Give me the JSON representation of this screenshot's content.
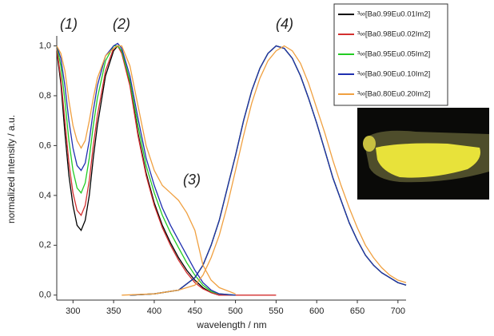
{
  "chart_data": {
    "type": "line",
    "xlabel": "wavelength / nm",
    "ylabel": "normalized intensity / a.u.",
    "annotations": [
      "(1)",
      "(2)",
      "(3)",
      "(4)"
    ],
    "xlim": [
      280,
      710
    ],
    "ylim": [
      -0.02,
      1.04
    ],
    "xticks": [
      300,
      350,
      400,
      450,
      500,
      550,
      600,
      650,
      700
    ],
    "yticks": [
      {
        "value": 0,
        "label": "0,0"
      },
      {
        "value": 0.2,
        "label": "0,2"
      },
      {
        "value": 0.4,
        "label": "0,4"
      },
      {
        "value": 0.6,
        "label": "0,6"
      },
      {
        "value": 0.8,
        "label": "0,8"
      },
      {
        "value": 1,
        "label": "1,0"
      }
    ],
    "series": [
      {
        "name": "³∞[Ba0.99Eu0.01Im2]",
        "color": "#000000",
        "x": [
          280,
          285,
          290,
          295,
          300,
          305,
          310,
          315,
          320,
          325,
          330,
          340,
          350,
          355,
          360,
          370,
          380,
          390,
          400,
          410,
          420,
          430,
          440,
          450,
          460,
          470,
          480,
          500,
          370,
          400,
          430,
          450,
          460,
          470,
          480,
          490,
          500,
          510,
          520,
          530,
          540,
          550,
          560,
          570,
          580,
          590,
          600,
          610,
          620,
          630,
          640,
          650,
          660,
          670,
          680,
          690,
          700,
          710
        ],
        "values": [
          0.98,
          0.85,
          0.65,
          0.48,
          0.36,
          0.28,
          0.26,
          0.3,
          0.4,
          0.55,
          0.68,
          0.88,
          0.98,
          1.0,
          0.98,
          0.85,
          0.65,
          0.49,
          0.37,
          0.28,
          0.21,
          0.15,
          0.1,
          0.06,
          0.03,
          0.01,
          0.0,
          0.0,
          0,
          0.005,
          0.02,
          0.07,
          0.12,
          0.2,
          0.3,
          0.43,
          0.56,
          0.7,
          0.82,
          0.91,
          0.97,
          1.0,
          0.99,
          0.95,
          0.88,
          0.79,
          0.69,
          0.58,
          0.47,
          0.38,
          0.29,
          0.22,
          0.16,
          0.12,
          0.09,
          0.07,
          0.05,
          0.04
        ]
      },
      {
        "name": "³∞[Ba0.98Eu0.02Im2]",
        "color": "#d32f2f",
        "x": [
          280,
          285,
          290,
          295,
          300,
          305,
          310,
          315,
          320,
          325,
          330,
          340,
          350,
          355,
          360,
          370,
          380,
          390,
          400,
          410,
          420,
          430,
          440,
          450,
          460,
          470,
          480,
          550,
          370,
          400,
          430,
          450,
          460,
          470,
          480,
          490,
          500,
          510,
          520,
          530,
          540,
          550,
          560,
          570,
          580,
          590,
          600,
          610,
          620,
          630,
          640,
          650,
          660,
          670,
          680,
          690,
          700,
          710
        ],
        "values": [
          0.99,
          0.87,
          0.7,
          0.53,
          0.41,
          0.34,
          0.32,
          0.36,
          0.46,
          0.6,
          0.72,
          0.9,
          0.99,
          1.0,
          0.97,
          0.84,
          0.64,
          0.48,
          0.36,
          0.27,
          0.2,
          0.14,
          0.09,
          0.05,
          0.025,
          0.01,
          0.0,
          0.0,
          0,
          0.005,
          0.02,
          0.07,
          0.12,
          0.2,
          0.3,
          0.43,
          0.56,
          0.7,
          0.82,
          0.91,
          0.97,
          1.0,
          0.99,
          0.95,
          0.88,
          0.79,
          0.69,
          0.58,
          0.47,
          0.38,
          0.29,
          0.22,
          0.16,
          0.12,
          0.09,
          0.07,
          0.05,
          0.04
        ]
      },
      {
        "name": "³∞[Ba0.95Eu0.05Im2]",
        "color": "#22cc22",
        "x": [
          280,
          285,
          290,
          295,
          300,
          305,
          310,
          315,
          320,
          325,
          330,
          340,
          350,
          355,
          360,
          370,
          380,
          390,
          400,
          410,
          420,
          430,
          440,
          450,
          460,
          470,
          480,
          500,
          370,
          400,
          430,
          450,
          460,
          470,
          480,
          490,
          500,
          510,
          520,
          530,
          540,
          550,
          560,
          570,
          580,
          590,
          600,
          610,
          620,
          630,
          640,
          650,
          660,
          670,
          680,
          690,
          700,
          710
        ],
        "values": [
          1.0,
          0.92,
          0.78,
          0.62,
          0.5,
          0.43,
          0.41,
          0.45,
          0.55,
          0.68,
          0.79,
          0.94,
          1.0,
          1.0,
          0.98,
          0.86,
          0.68,
          0.52,
          0.41,
          0.32,
          0.25,
          0.19,
          0.13,
          0.08,
          0.04,
          0.015,
          0.005,
          0.0,
          0,
          0.005,
          0.02,
          0.07,
          0.12,
          0.2,
          0.3,
          0.43,
          0.56,
          0.7,
          0.82,
          0.91,
          0.97,
          1.0,
          0.99,
          0.95,
          0.88,
          0.79,
          0.69,
          0.58,
          0.47,
          0.38,
          0.29,
          0.22,
          0.16,
          0.12,
          0.09,
          0.07,
          0.05,
          0.04
        ]
      },
      {
        "name": "³∞[Ba0.90Eu0.10Im2]",
        "color": "#1f2fb0",
        "x": [
          280,
          285,
          290,
          295,
          300,
          305,
          310,
          315,
          320,
          325,
          330,
          340,
          350,
          355,
          360,
          370,
          380,
          390,
          400,
          410,
          420,
          430,
          440,
          450,
          460,
          470,
          480,
          500,
          370,
          400,
          430,
          450,
          460,
          470,
          480,
          490,
          500,
          510,
          520,
          530,
          540,
          550,
          560,
          570,
          580,
          590,
          600,
          610,
          620,
          630,
          640,
          650,
          660,
          670,
          680,
          690,
          700,
          710
        ],
        "values": [
          1.0,
          0.95,
          0.84,
          0.7,
          0.59,
          0.52,
          0.5,
          0.53,
          0.62,
          0.74,
          0.84,
          0.96,
          1.0,
          1.01,
          0.99,
          0.88,
          0.71,
          0.55,
          0.44,
          0.35,
          0.28,
          0.22,
          0.16,
          0.1,
          0.05,
          0.02,
          0.005,
          0.0,
          0,
          0.005,
          0.02,
          0.07,
          0.12,
          0.2,
          0.3,
          0.43,
          0.56,
          0.7,
          0.82,
          0.91,
          0.97,
          1.0,
          0.99,
          0.95,
          0.88,
          0.79,
          0.69,
          0.58,
          0.47,
          0.38,
          0.29,
          0.22,
          0.16,
          0.12,
          0.09,
          0.07,
          0.05,
          0.04
        ]
      },
      {
        "name": "³∞[Ba0.80Eu0.20Im2]",
        "color": "#f0a040",
        "x": [
          280,
          285,
          290,
          295,
          300,
          305,
          310,
          315,
          320,
          325,
          330,
          340,
          350,
          355,
          360,
          370,
          380,
          390,
          400,
          410,
          420,
          430,
          440,
          450,
          460,
          470,
          480,
          500,
          360,
          400,
          430,
          450,
          460,
          470,
          480,
          490,
          500,
          510,
          520,
          530,
          540,
          550,
          560,
          570,
          580,
          590,
          600,
          610,
          620,
          630,
          640,
          650,
          660,
          670,
          680,
          690,
          700,
          710
        ],
        "values": [
          1.0,
          0.97,
          0.9,
          0.78,
          0.68,
          0.62,
          0.59,
          0.62,
          0.7,
          0.79,
          0.87,
          0.96,
          0.99,
          1.0,
          1.0,
          0.92,
          0.76,
          0.6,
          0.5,
          0.44,
          0.41,
          0.38,
          0.33,
          0.26,
          0.12,
          0.06,
          0.03,
          0.005,
          0,
          0.005,
          0.02,
          0.04,
          0.08,
          0.15,
          0.24,
          0.36,
          0.5,
          0.64,
          0.77,
          0.87,
          0.94,
          0.98,
          1.0,
          0.98,
          0.93,
          0.85,
          0.75,
          0.65,
          0.54,
          0.44,
          0.35,
          0.27,
          0.2,
          0.15,
          0.11,
          0.08,
          0.06,
          0.05
        ]
      }
    ]
  }
}
